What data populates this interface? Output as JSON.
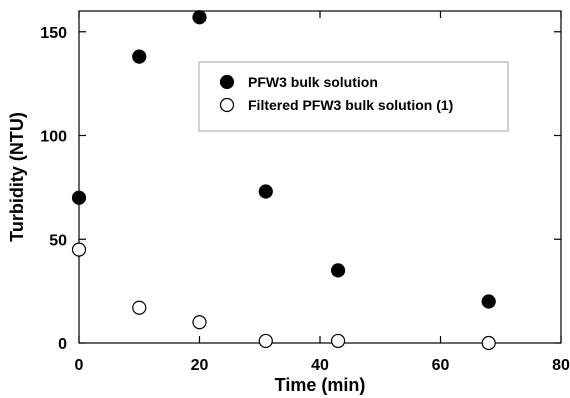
{
  "chart_data": {
    "type": "scatter",
    "xlabel": "Time (min)",
    "ylabel": "Turbidity (NTU)",
    "xlim": [
      0,
      80
    ],
    "ylim": [
      0,
      160
    ],
    "xticks": [
      0,
      20,
      40,
      60,
      80
    ],
    "yticks": [
      0,
      50,
      100,
      150
    ],
    "grid": false,
    "legend_position": "top-right",
    "series": [
      {
        "name": "PFW3 bulk solution",
        "marker": "filled-circle",
        "color": "#000000",
        "x": [
          0,
          10,
          20,
          31,
          43,
          68
        ],
        "y": [
          70,
          138,
          157,
          73,
          35,
          20
        ]
      },
      {
        "name": "Filtered PFW3 bulk solution (1)",
        "marker": "open-circle",
        "color": "#000000",
        "x": [
          0,
          10,
          20,
          31,
          43,
          68
        ],
        "y": [
          45,
          17,
          10,
          1,
          1,
          0
        ]
      }
    ]
  }
}
